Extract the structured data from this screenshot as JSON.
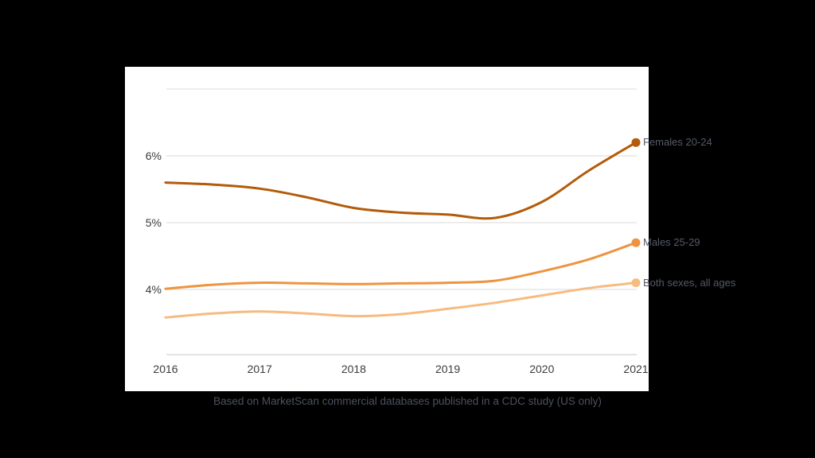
{
  "caption": "Based on MarketScan commercial databases published in a CDC study (US only)",
  "colors": {
    "background": "#000000",
    "panel": "#ffffff",
    "gridline": "#d9d9d9",
    "axis_line": "#c7c7c7",
    "tick_text": "#3b3b3b",
    "label_text": "#555a68"
  },
  "chart_data": {
    "type": "line",
    "title": "",
    "xlabel": "",
    "ylabel": "",
    "x_years": [
      2016,
      2017,
      2018,
      2019,
      2020,
      2021
    ],
    "xticks": [
      "2016",
      "2017",
      "2018",
      "2019",
      "2020",
      "2021"
    ],
    "yticks": [
      {
        "label": "6%",
        "value": 6
      },
      {
        "label": "5%",
        "value": 5
      },
      {
        "label": "4%",
        "value": 4
      }
    ],
    "gridline_values": [
      4,
      5,
      6,
      7
    ],
    "baseline_value": 3,
    "ylim": [
      3,
      7.3
    ],
    "grid_on": true,
    "legend_position": "right-end-of-line",
    "series": [
      {
        "name": "Females 20-24",
        "color": "#b35b09",
        "points": [
          [
            2016,
            5.6
          ],
          [
            2016.5,
            5.57
          ],
          [
            2017,
            5.51
          ],
          [
            2017.5,
            5.38
          ],
          [
            2018,
            5.22
          ],
          [
            2018.5,
            5.15
          ],
          [
            2019,
            5.12
          ],
          [
            2019.5,
            5.07
          ],
          [
            2020,
            5.31
          ],
          [
            2020.5,
            5.78
          ],
          [
            2021,
            6.2
          ]
        ],
        "annual_values": [
          5.6,
          5.5,
          5.2,
          5.1,
          5.3,
          6.2
        ]
      },
      {
        "name": "Males 25-29",
        "color": "#ee9440",
        "points": [
          [
            2016,
            4.01
          ],
          [
            2016.5,
            4.07
          ],
          [
            2017,
            4.1
          ],
          [
            2017.5,
            4.09
          ],
          [
            2018,
            4.08
          ],
          [
            2018.5,
            4.09
          ],
          [
            2019,
            4.1
          ],
          [
            2019.5,
            4.13
          ],
          [
            2020,
            4.27
          ],
          [
            2020.5,
            4.45
          ],
          [
            2021,
            4.7
          ]
        ],
        "annual_values": [
          4.0,
          4.1,
          4.1,
          4.1,
          4.3,
          4.7
        ]
      },
      {
        "name": "Both sexes, all ages",
        "color": "#f6bb80",
        "points": [
          [
            2016,
            3.58
          ],
          [
            2016.5,
            3.64
          ],
          [
            2017,
            3.67
          ],
          [
            2017.5,
            3.64
          ],
          [
            2018,
            3.6
          ],
          [
            2018.5,
            3.63
          ],
          [
            2019,
            3.71
          ],
          [
            2019.5,
            3.8
          ],
          [
            2020,
            3.91
          ],
          [
            2020.5,
            4.02
          ],
          [
            2021,
            4.1
          ]
        ],
        "annual_values": [
          3.6,
          3.7,
          3.6,
          3.7,
          3.9,
          4.1
        ]
      }
    ]
  }
}
